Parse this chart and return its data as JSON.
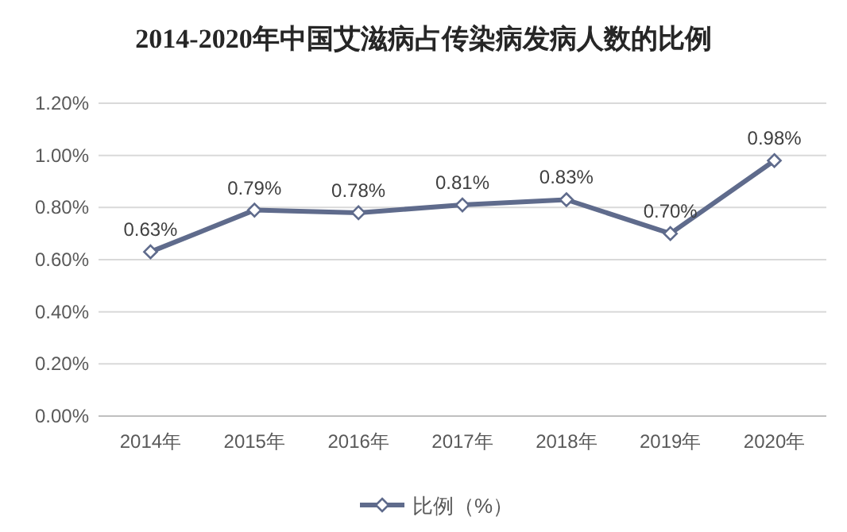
{
  "chart_data": {
    "type": "line",
    "title": "2014-2020年中国艾滋病占传染病发病人数的比例",
    "categories": [
      "2014年",
      "2015年",
      "2016年",
      "2017年",
      "2018年",
      "2019年",
      "2020年"
    ],
    "series": [
      {
        "name": "比例（%）",
        "color": "#5f6b8c",
        "values": [
          0.63,
          0.79,
          0.78,
          0.81,
          0.83,
          0.7,
          0.98
        ],
        "value_labels": [
          "0.63%",
          "0.79%",
          "0.78%",
          "0.81%",
          "0.83%",
          "0.70%",
          "0.98%"
        ]
      }
    ],
    "ylim": [
      0,
      1.2
    ],
    "yticks": [
      {
        "value": 0,
        "label": "0.00%"
      },
      {
        "value": 0.2,
        "label": "0.20%"
      },
      {
        "value": 0.4,
        "label": "0.40%"
      },
      {
        "value": 0.6,
        "label": "0.60%"
      },
      {
        "value": 0.8,
        "label": "0.80%"
      },
      {
        "value": 1.0,
        "label": "1.00%"
      },
      {
        "value": 1.2,
        "label": "1.20%"
      }
    ],
    "grid": "y",
    "legend": "bottom",
    "marker": "diamond",
    "line_style": "solid"
  }
}
